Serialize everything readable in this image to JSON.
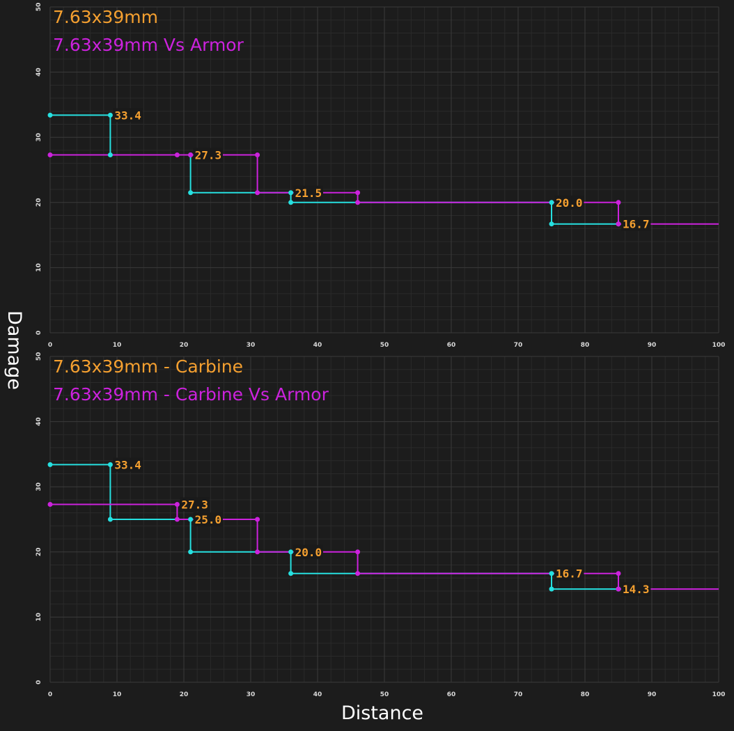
{
  "y_axis_label": "Damage",
  "x_axis_label": "Distance",
  "colors": {
    "background": "#1c1c1c",
    "grid_major": "#3a3a3a",
    "grid_minor": "#2a2a2a",
    "base_series": "#26e0e0",
    "armor_series": "#cc22dd",
    "title_base": "#f5a030",
    "title_armor": "#cc22dd",
    "data_label": "#f5a030",
    "data_label_bg": "#1a1a1a"
  },
  "chart_data": [
    {
      "type": "line",
      "title": "7.63x39mm",
      "subtitle": "7.63x39mm Vs Armor",
      "xlim": [
        0,
        100
      ],
      "ylim": [
        0,
        50
      ],
      "x_ticks": [
        0,
        10,
        20,
        30,
        40,
        50,
        60,
        70,
        80,
        90,
        100
      ],
      "y_ticks": [
        0,
        10,
        20,
        30,
        40,
        50
      ],
      "grid": true,
      "series": [
        {
          "name": "7.63x39mm",
          "x": [
            0,
            9,
            9,
            21,
            21,
            36,
            36,
            75,
            75,
            85
          ],
          "y": [
            33.4,
            33.4,
            27.3,
            27.3,
            21.5,
            21.5,
            20.0,
            20.0,
            16.7,
            16.7
          ]
        },
        {
          "name": "7.63x39mm Vs Armor",
          "x": [
            0,
            19,
            21,
            31,
            31,
            46,
            46,
            85,
            85,
            100
          ],
          "y": [
            27.3,
            27.3,
            27.3,
            27.3,
            21.5,
            21.5,
            20.0,
            20.0,
            16.7,
            16.7
          ]
        }
      ],
      "data_labels": [
        {
          "text": "33.4",
          "x": 9,
          "y": 33.4
        },
        {
          "text": "27.3",
          "x": 21,
          "y": 27.3
        },
        {
          "text": "21.5",
          "x": 36,
          "y": 21.5
        },
        {
          "text": "20.0",
          "x": 75,
          "y": 20.0
        },
        {
          "text": "16.7",
          "x": 85,
          "y": 16.7
        }
      ]
    },
    {
      "type": "line",
      "title": "7.63x39mm - Carbine",
      "subtitle": "7.63x39mm - Carbine Vs Armor",
      "xlim": [
        0,
        100
      ],
      "ylim": [
        0,
        50
      ],
      "x_ticks": [
        0,
        10,
        20,
        30,
        40,
        50,
        60,
        70,
        80,
        90,
        100
      ],
      "y_ticks": [
        0,
        10,
        20,
        30,
        40,
        50
      ],
      "grid": true,
      "series": [
        {
          "name": "7.63x39mm - Carbine",
          "x": [
            0,
            9,
            9,
            21,
            21,
            36,
            36,
            75,
            75,
            85
          ],
          "y": [
            33.4,
            33.4,
            25.0,
            25.0,
            20.0,
            20.0,
            16.7,
            16.7,
            14.3,
            14.3
          ]
        },
        {
          "name": "7.63x39mm - Carbine Vs Armor",
          "x": [
            0,
            19,
            19,
            31,
            31,
            46,
            46,
            85,
            85,
            100
          ],
          "y": [
            27.3,
            27.3,
            25.0,
            25.0,
            20.0,
            20.0,
            16.7,
            16.7,
            14.3,
            14.3
          ]
        }
      ],
      "data_labels": [
        {
          "text": "33.4",
          "x": 9,
          "y": 33.4
        },
        {
          "text": "27.3",
          "x": 19,
          "y": 27.3
        },
        {
          "text": "25.0",
          "x": 21,
          "y": 25.0
        },
        {
          "text": "20.0",
          "x": 36,
          "y": 20.0
        },
        {
          "text": "16.7",
          "x": 75,
          "y": 16.7
        },
        {
          "text": "14.3",
          "x": 85,
          "y": 14.3
        }
      ]
    }
  ]
}
